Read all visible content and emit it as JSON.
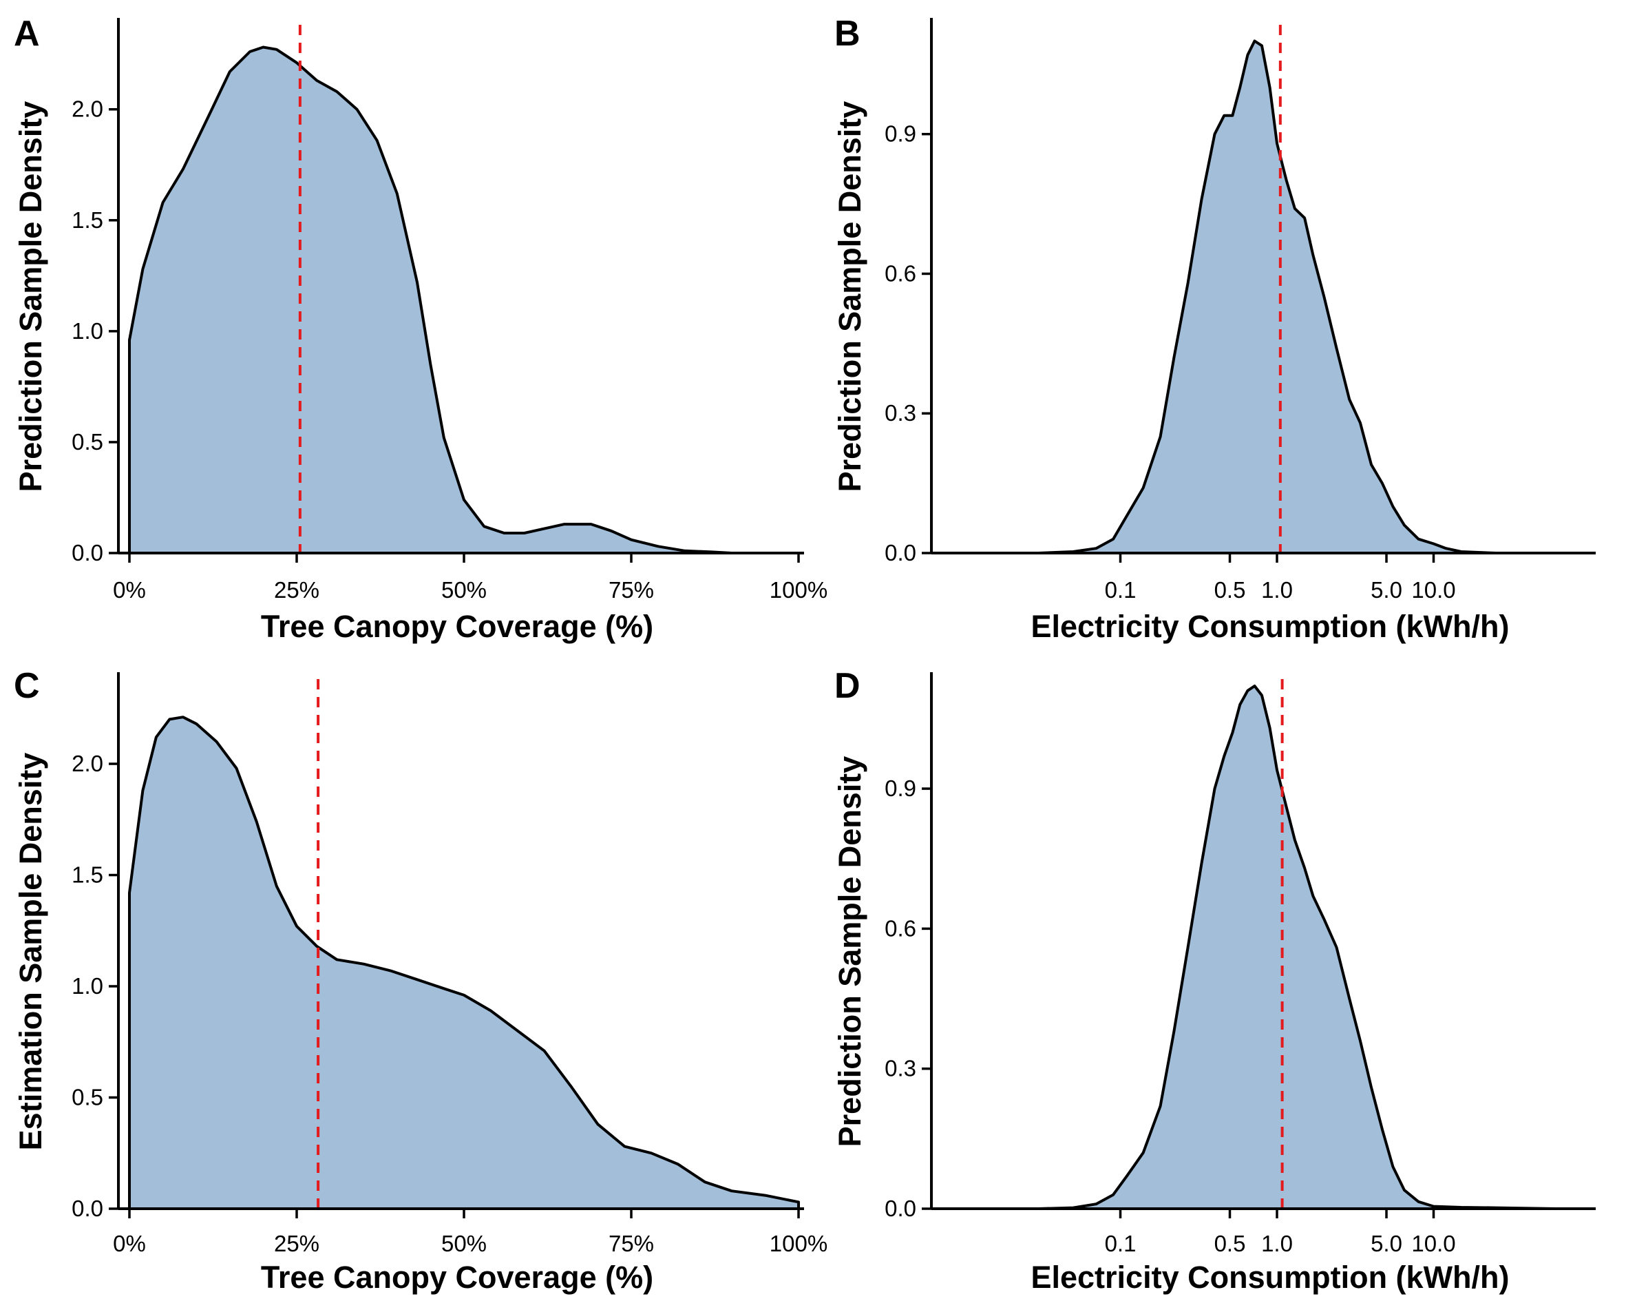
{
  "chart_data": [
    {
      "panel": "A",
      "type": "area",
      "xlabel": "Tree Canopy Coverage (%)",
      "ylabel": "Prediction Sample Density",
      "x_scale": "linear",
      "xlim": [
        0,
        1
      ],
      "ylim": [
        0,
        2.35
      ],
      "x_ticks": [
        0,
        0.25,
        0.5,
        0.75,
        1.0
      ],
      "x_tick_labels": [
        "0%",
        "25%",
        "50%",
        "75%",
        "100%"
      ],
      "y_ticks": [
        0.0,
        0.5,
        1.0,
        1.5,
        2.0
      ],
      "y_tick_labels": [
        "0.0",
        "0.5",
        "1.0",
        "1.5",
        "2.0"
      ],
      "reference_line_x": 0.255,
      "reference_line_color": "#e41a1c",
      "fill_color": "#a2bed9",
      "x": [
        0.0,
        0.02,
        0.05,
        0.08,
        0.12,
        0.15,
        0.18,
        0.2,
        0.22,
        0.25,
        0.28,
        0.31,
        0.34,
        0.37,
        0.4,
        0.43,
        0.45,
        0.47,
        0.5,
        0.53,
        0.56,
        0.59,
        0.62,
        0.65,
        0.69,
        0.72,
        0.75,
        0.79,
        0.83,
        0.87,
        0.9,
        0.95,
        1.0
      ],
      "y": [
        0.96,
        1.28,
        1.58,
        1.73,
        1.98,
        2.17,
        2.26,
        2.28,
        2.27,
        2.21,
        2.13,
        2.08,
        2.0,
        1.86,
        1.62,
        1.22,
        0.85,
        0.52,
        0.24,
        0.12,
        0.09,
        0.09,
        0.11,
        0.13,
        0.13,
        0.1,
        0.06,
        0.03,
        0.01,
        0.005,
        0.0,
        0.0,
        0.0
      ]
    },
    {
      "panel": "B",
      "type": "area",
      "xlabel": "Electricity Consumption (kWh/h)",
      "ylabel": "Prediction Sample Density",
      "x_scale": "log",
      "xlim": [
        0.01,
        100
      ],
      "ylim": [
        0,
        1.12
      ],
      "x_ticks": [
        0.1,
        0.5,
        1.0,
        5.0,
        10.0
      ],
      "x_tick_labels": [
        "0.1",
        "0.5",
        "1.0",
        "5.0",
        "10.0"
      ],
      "y_ticks": [
        0.0,
        0.3,
        0.6,
        0.9
      ],
      "y_tick_labels": [
        "0.0",
        "0.3",
        "0.6",
        "0.9"
      ],
      "reference_line_x": 1.05,
      "reference_line_color": "#e41a1c",
      "fill_color": "#a2bed9",
      "x": [
        0.012,
        0.03,
        0.05,
        0.07,
        0.09,
        0.11,
        0.14,
        0.18,
        0.22,
        0.27,
        0.33,
        0.4,
        0.46,
        0.52,
        0.58,
        0.65,
        0.72,
        0.8,
        0.9,
        1.0,
        1.15,
        1.3,
        1.5,
        1.7,
        2.0,
        2.4,
        2.9,
        3.4,
        4.0,
        4.7,
        5.5,
        6.5,
        8.0,
        10.0,
        12.0,
        15.0,
        25.0,
        60.0
      ],
      "y": [
        0.0,
        0.0,
        0.003,
        0.01,
        0.03,
        0.08,
        0.14,
        0.25,
        0.42,
        0.58,
        0.76,
        0.9,
        0.94,
        0.94,
        1.0,
        1.07,
        1.1,
        1.09,
        1.0,
        0.88,
        0.8,
        0.74,
        0.72,
        0.64,
        0.55,
        0.44,
        0.33,
        0.28,
        0.19,
        0.15,
        0.1,
        0.06,
        0.03,
        0.02,
        0.01,
        0.003,
        0.0,
        0.0
      ]
    },
    {
      "panel": "C",
      "type": "area",
      "xlabel": "Tree Canopy Coverage (%)",
      "ylabel": "Estimation Sample Density",
      "x_scale": "linear",
      "xlim": [
        0,
        1
      ],
      "ylim": [
        0,
        2.35
      ],
      "x_ticks": [
        0,
        0.25,
        0.5,
        0.75,
        1.0
      ],
      "x_tick_labels": [
        "0%",
        "25%",
        "50%",
        "75%",
        "100%"
      ],
      "y_ticks": [
        0.0,
        0.5,
        1.0,
        1.5,
        2.0
      ],
      "y_tick_labels": [
        "0.0",
        "0.5",
        "1.0",
        "1.5",
        "2.0"
      ],
      "reference_line_x": 0.282,
      "reference_line_color": "#e41a1c",
      "fill_color": "#a2bed9",
      "x": [
        0.0,
        0.02,
        0.04,
        0.06,
        0.08,
        0.1,
        0.13,
        0.16,
        0.19,
        0.22,
        0.25,
        0.28,
        0.31,
        0.35,
        0.39,
        0.43,
        0.47,
        0.5,
        0.54,
        0.58,
        0.62,
        0.66,
        0.7,
        0.74,
        0.78,
        0.82,
        0.86,
        0.9,
        0.95,
        1.0
      ],
      "y": [
        1.42,
        1.88,
        2.12,
        2.2,
        2.21,
        2.18,
        2.1,
        1.98,
        1.74,
        1.45,
        1.27,
        1.18,
        1.12,
        1.1,
        1.07,
        1.03,
        0.99,
        0.96,
        0.89,
        0.8,
        0.71,
        0.55,
        0.38,
        0.28,
        0.25,
        0.2,
        0.12,
        0.08,
        0.06,
        0.03
      ]
    },
    {
      "panel": "D",
      "type": "area",
      "xlabel": "Electricity Consumption (kWh/h)",
      "ylabel": "Prediction Sample Density",
      "x_scale": "log",
      "xlim": [
        0.01,
        100
      ],
      "ylim": [
        0,
        1.12
      ],
      "x_ticks": [
        0.1,
        0.5,
        1.0,
        5.0,
        10.0
      ],
      "x_tick_labels": [
        "0.1",
        "0.5",
        "1.0",
        "5.0",
        "10.0"
      ],
      "y_ticks": [
        0.0,
        0.3,
        0.6,
        0.9
      ],
      "y_tick_labels": [
        "0.0",
        "0.3",
        "0.6",
        "0.9"
      ],
      "reference_line_x": 1.08,
      "reference_line_color": "#e41a1c",
      "fill_color": "#a2bed9",
      "x": [
        0.012,
        0.03,
        0.05,
        0.07,
        0.09,
        0.11,
        0.14,
        0.18,
        0.22,
        0.27,
        0.33,
        0.4,
        0.46,
        0.52,
        0.58,
        0.65,
        0.72,
        0.8,
        0.9,
        1.0,
        1.15,
        1.3,
        1.5,
        1.7,
        2.0,
        2.4,
        2.9,
        3.4,
        4.0,
        4.7,
        5.5,
        6.5,
        8.0,
        10.0,
        15.0,
        25.0,
        60.0
      ],
      "y": [
        0.0,
        0.0,
        0.002,
        0.01,
        0.03,
        0.07,
        0.12,
        0.22,
        0.38,
        0.56,
        0.74,
        0.9,
        0.97,
        1.02,
        1.08,
        1.11,
        1.12,
        1.1,
        1.03,
        0.94,
        0.86,
        0.79,
        0.73,
        0.67,
        0.62,
        0.56,
        0.45,
        0.36,
        0.26,
        0.17,
        0.09,
        0.04,
        0.015,
        0.005,
        0.003,
        0.002,
        0.0
      ]
    }
  ]
}
